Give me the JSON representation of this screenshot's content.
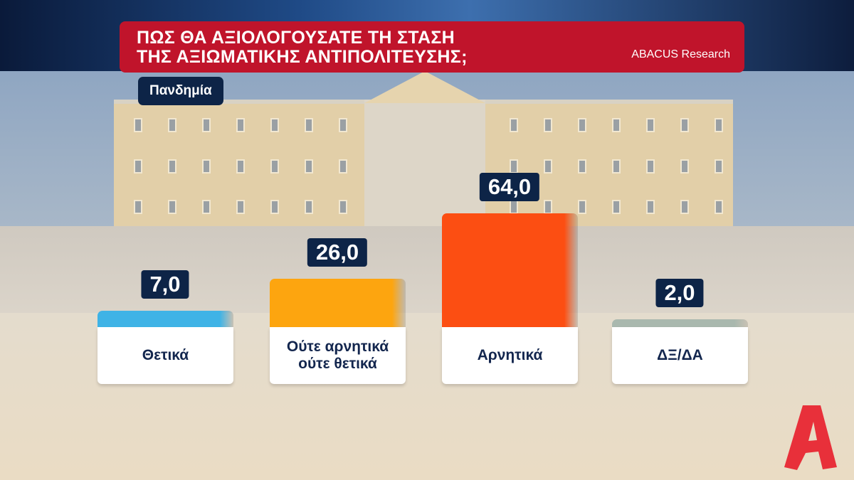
{
  "header": {
    "title_line1": "ΠΩΣ ΘΑ ΑΞΙΟΛΟΓΟΥΣΑΤΕ ΤΗ ΣΤΑΣΗ",
    "title_line2": "ΤΗΣ ΑΞΙΩΜΑΤΙΚΗΣ ΑΝΤΙΠΟΛΙΤΕΥΣΗΣ;",
    "source": "ABACUS Research"
  },
  "subtitle": "Πανδημία",
  "chart_data": {
    "type": "bar",
    "title": "ΠΩΣ ΘΑ ΑΞΙΟΛΟΓΟΥΣΑΤΕ ΤΗ ΣΤΑΣΗ ΤΗΣ ΑΞΙΩΜΑΤΙΚΗΣ ΑΝΤΙΠΟΛΙΤΕΥΣΗΣ;",
    "subtitle": "Πανδημία",
    "categories": [
      "Θετικά",
      "Ούτε αρνητικά ούτε θετικά",
      "Αρνητικά",
      "ΔΞ/ΔΑ"
    ],
    "values": [
      7.0,
      26.0,
      64.0,
      2.0
    ],
    "value_labels": [
      "7,0",
      "26,0",
      "64,0",
      "2,0"
    ],
    "colors": [
      "#3fb3e6",
      "#fda50f",
      "#fc4e12",
      "#a9b8ae"
    ],
    "xlabel": "",
    "ylabel": "",
    "ylim": [
      0,
      64
    ]
  }
}
